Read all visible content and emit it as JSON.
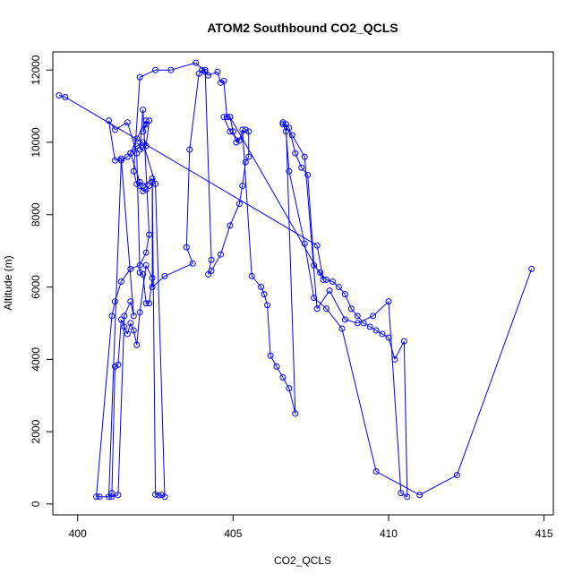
{
  "chart_data": {
    "type": "line",
    "title": "ATOM2 Southbound CO2_QCLS",
    "xlabel": "CO2_QCLS",
    "ylabel": "Altitude (m)",
    "xlim": [
      399.2,
      415.3
    ],
    "ylim": [
      -300,
      12500
    ],
    "xticks": [
      400,
      405,
      410,
      415
    ],
    "yticks": [
      0,
      2000,
      4000,
      6000,
      8000,
      10000,
      12000
    ],
    "series_color": "#0000ff",
    "marker": "open-circle",
    "series": [
      {
        "x": [
          399.4,
          399.6,
          407.7,
          407.9,
          404.9,
          404.7,
          404.9,
          405.2,
          405.4,
          405.5,
          405.5,
          405.4,
          405.3,
          405.2,
          404.9,
          404.6,
          404.3,
          404.2,
          404.3,
          404.1,
          404.0,
          403.9,
          403.6,
          403.5,
          403.7,
          402.8,
          402.4,
          402.4,
          402.1,
          402.0,
          401.7,
          401.9,
          402.2,
          402.2,
          402.1,
          402.3,
          402.2,
          402.1,
          402.0,
          402.1,
          402.3,
          402.2,
          402.0,
          401.7,
          401.4,
          401.2,
          401.1,
          400.6,
          400.7,
          401.1,
          401.3,
          401.5,
          401.7,
          401.8,
          401.4,
          401.2,
          401.0,
          401.2,
          401.6,
          401.9,
          402.0,
          402.1,
          402.2,
          402.3,
          402.4,
          402.2,
          402.0,
          401.9,
          401.8,
          401.7,
          401.6,
          401.5,
          401.4,
          401.3,
          401.2,
          401.1,
          401.0,
          401.4,
          401.6,
          401.7,
          401.9,
          402.1,
          402.5,
          402.8,
          402.7,
          402.6,
          402.5,
          402.4,
          402.3,
          402.2,
          402.1,
          402.0,
          401.9,
          401.8,
          402.0,
          402.5,
          403.0,
          403.8,
          404.1,
          404.2,
          404.5,
          404.6,
          404.7,
          404.8,
          404.9,
          405.0,
          405.1,
          405.2,
          405.3,
          405.6,
          405.9,
          406.0,
          406.1,
          406.2,
          406.4,
          406.6,
          406.8,
          407.0,
          406.7,
          406.8,
          407.0,
          407.2,
          407.4,
          407.6,
          407.8,
          408.0,
          408.2,
          408.4,
          408.6,
          408.8,
          409.0,
          409.2,
          409.4,
          409.6,
          409.8,
          410.0,
          410.2,
          410.5,
          410.6,
          410.4,
          410.0,
          409.5,
          409.0,
          408.6,
          408.1,
          407.7,
          407.3,
          406.9,
          406.6,
          406.6,
          406.7,
          406.8,
          407.3,
          407.6,
          408.0,
          408.5,
          409.6,
          411.0,
          412.2,
          414.6
        ],
        "y": [
          11300,
          11250,
          7150,
          6200,
          10700,
          10700,
          10300,
          10050,
          10350,
          10300,
          9600,
          9450,
          8800,
          8300,
          7700,
          6900,
          6450,
          6350,
          6750,
          12000,
          12000,
          11900,
          9800,
          7100,
          6650,
          6300,
          6000,
          9000,
          8800,
          8900,
          9700,
          10100,
          10600,
          10500,
          10300,
          10600,
          9900,
          9850,
          9800,
          10900,
          7450,
          6950,
          6600,
          6500,
          6150,
          5600,
          5200,
          200,
          200,
          200,
          250,
          5200,
          5600,
          5200,
          9550,
          9500,
          10600,
          10350,
          10550,
          9700,
          6400,
          6350,
          5550,
          5550,
          6250,
          6600,
          5300,
          4400,
          4800,
          5000,
          4700,
          4900,
          5100,
          3850,
          3800,
          300,
          200,
          9500,
          9600,
          9700,
          9900,
          10000,
          8850,
          200,
          250,
          240,
          260,
          8900,
          8800,
          8700,
          8650,
          8800,
          8850,
          9200,
          11800,
          12000,
          12000,
          12200,
          11950,
          11850,
          11950,
          11650,
          11700,
          10700,
          10700,
          10300,
          10000,
          10050,
          10350,
          6300,
          6000,
          5800,
          5500,
          4100,
          3800,
          3500,
          3200,
          2500,
          10500,
          10400,
          9700,
          9300,
          9100,
          6600,
          6400,
          6200,
          6150,
          6000,
          5800,
          5400,
          5200,
          5000,
          4900,
          4800,
          4700,
          4600,
          4000,
          4500,
          200,
          300,
          5600,
          5200,
          5000,
          5100,
          5900,
          5400,
          9600,
          10200,
          10550,
          10500,
          10300,
          9200,
          7200,
          5700,
          5400,
          4850,
          900,
          250,
          800,
          6500
        ]
      }
    ]
  }
}
